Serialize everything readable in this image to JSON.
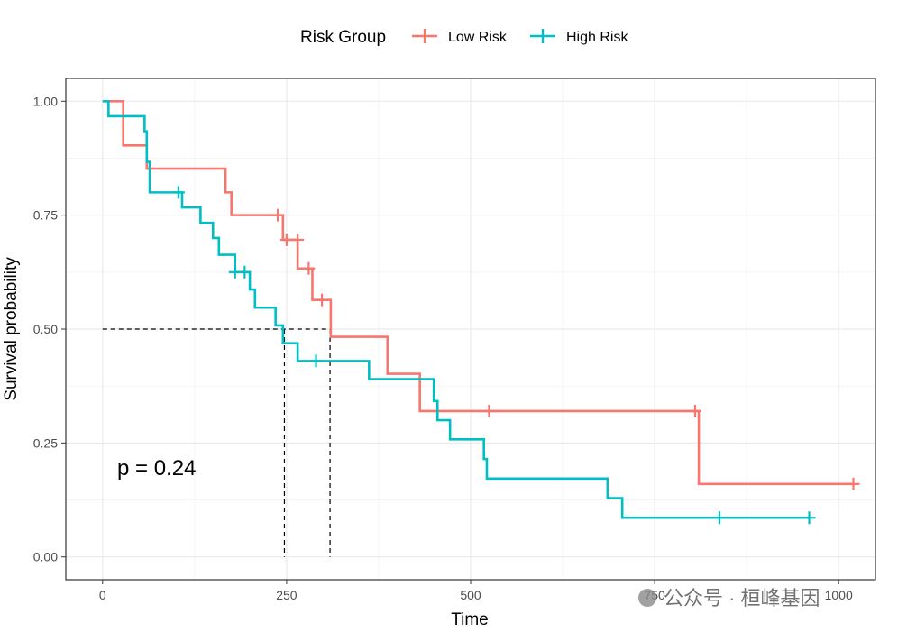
{
  "chart_data": {
    "type": "line",
    "subtype": "kaplan-meier",
    "xlabel": "Time",
    "ylabel": "Survival probability",
    "xlim": [
      -50,
      1050
    ],
    "ylim": [
      -0.05,
      1.05
    ],
    "xticks": [
      0,
      250,
      500,
      750,
      1000
    ],
    "yticks": [
      0.0,
      0.25,
      0.5,
      0.75,
      1.0
    ],
    "xtick_labels": [
      "0",
      "250",
      "500",
      "750",
      "1000"
    ],
    "ytick_labels": [
      "0.00",
      "0.25",
      "0.50",
      "0.75",
      "1.00"
    ],
    "grid": true,
    "legend": {
      "title": "Risk Group",
      "position": "top"
    },
    "annotation": "p = 0.24",
    "median_lines": [
      {
        "x": 247,
        "y": 0.5
      },
      {
        "x": 309,
        "y": 0.5
      }
    ],
    "series": [
      {
        "name": "Low Risk",
        "color": "#F8766D",
        "steps": [
          [
            0,
            1.0
          ],
          [
            28,
            0.903
          ],
          [
            60,
            0.852
          ],
          [
            167,
            0.8
          ],
          [
            175,
            0.75
          ],
          [
            245,
            0.696
          ],
          [
            265,
            0.633
          ],
          [
            285,
            0.564
          ],
          [
            310,
            0.483
          ],
          [
            387,
            0.402
          ],
          [
            431,
            0.32
          ],
          [
            810,
            0.16
          ],
          [
            1020,
            0.16
          ]
        ],
        "censored": [
          [
            238,
            0.75
          ],
          [
            250,
            0.696
          ],
          [
            265,
            0.696
          ],
          [
            280,
            0.633
          ],
          [
            298,
            0.564
          ],
          [
            525,
            0.32
          ],
          [
            805,
            0.32
          ],
          [
            1020,
            0.16
          ]
        ]
      },
      {
        "name": "High Risk",
        "color": "#00BFC4",
        "steps": [
          [
            0,
            1.0
          ],
          [
            8,
            0.967
          ],
          [
            57,
            0.934
          ],
          [
            60,
            0.867
          ],
          [
            64,
            0.8
          ],
          [
            108,
            0.767
          ],
          [
            133,
            0.733
          ],
          [
            150,
            0.7
          ],
          [
            158,
            0.663
          ],
          [
            180,
            0.625
          ],
          [
            200,
            0.587
          ],
          [
            207,
            0.547
          ],
          [
            235,
            0.508
          ],
          [
            245,
            0.469
          ],
          [
            265,
            0.43
          ],
          [
            362,
            0.39
          ],
          [
            450,
            0.342
          ],
          [
            455,
            0.3
          ],
          [
            472,
            0.258
          ],
          [
            518,
            0.215
          ],
          [
            522,
            0.172
          ],
          [
            686,
            0.129
          ],
          [
            706,
            0.086
          ],
          [
            960,
            0.086
          ]
        ],
        "censored": [
          [
            103,
            0.8
          ],
          [
            180,
            0.625
          ],
          [
            193,
            0.625
          ],
          [
            290,
            0.43
          ],
          [
            838,
            0.086
          ],
          [
            960,
            0.086
          ]
        ]
      }
    ]
  },
  "watermark": "公众号 · 桓峰基因"
}
